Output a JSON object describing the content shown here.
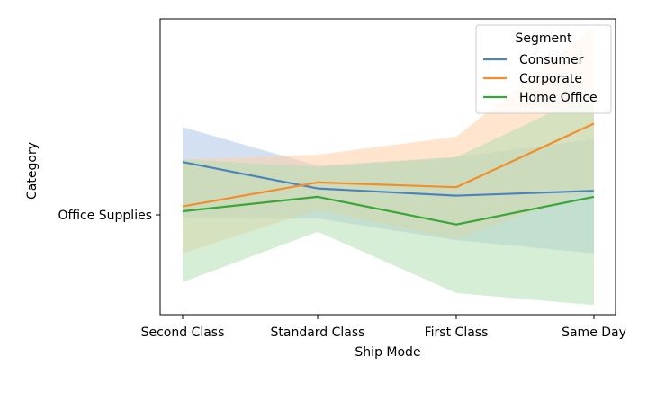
{
  "chart_data": {
    "type": "line",
    "title": "",
    "xlabel": "Ship Mode",
    "ylabel": "Category",
    "categories": [
      "Second Class",
      "Standard Class",
      "First Class",
      "Same Day"
    ],
    "y_tick_labels": [
      "Office Supplies"
    ],
    "legend": {
      "title": "Segment",
      "position": "top-right"
    },
    "grid": false,
    "y_range": [
      -0.83,
      1.63
    ],
    "series": [
      {
        "name": "Consumer",
        "color": "#4c83bd",
        "band_color": "#aec7e8",
        "values": [
          0.44,
          0.22,
          0.16,
          0.2
        ],
        "ci_low": [
          -0.03,
          -0.03,
          -0.21,
          -0.32
        ],
        "ci_high": [
          0.73,
          0.41,
          0.48,
          0.63
        ]
      },
      {
        "name": "Corporate",
        "color": "#f28e2b",
        "band_color": "#ffd0a6",
        "values": [
          0.07,
          0.27,
          0.23,
          0.76
        ],
        "ci_low": [
          -0.32,
          0.04,
          -0.2,
          0.21
        ],
        "ci_high": [
          0.46,
          0.5,
          0.65,
          1.56
        ]
      },
      {
        "name": "Home Office",
        "color": "#3aa63a",
        "band_color": "#b5dfb5",
        "values": [
          0.03,
          0.15,
          -0.08,
          0.15
        ],
        "ci_low": [
          -0.56,
          -0.14,
          -0.65,
          -0.75
        ],
        "ci_high": [
          0.46,
          0.4,
          0.48,
          1.02
        ]
      }
    ]
  }
}
